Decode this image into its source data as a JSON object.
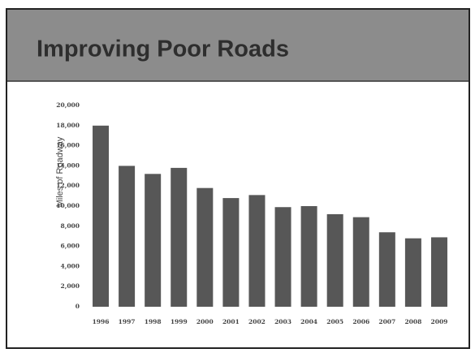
{
  "chart_data": {
    "type": "bar",
    "title": "Improving Poor Roads",
    "y_label": "Miles of Roadway",
    "categories": [
      "1996",
      "1997",
      "1998",
      "1999",
      "2000",
      "2001",
      "2002",
      "2003",
      "2004",
      "2005",
      "2006",
      "2007",
      "2008",
      "2009"
    ],
    "values": [
      18000,
      14000,
      13200,
      13800,
      11800,
      10800,
      11100,
      9900,
      10000,
      9200,
      8900,
      7400,
      6800,
      6900
    ],
    "color": "#575757",
    "ylim": [
      0,
      20000
    ],
    "yticks": [
      0,
      {
        "value": 2000,
        "label": "2,000"
      },
      {
        "value": 4000,
        "label": "4,000"
      },
      {
        "value": 6000,
        "label": "6,000"
      },
      {
        "value": 8000,
        "label": "8,000"
      },
      {
        "value": 10000,
        "label": "10,000"
      },
      {
        "value": 12000,
        "label": "12,000"
      },
      {
        "value": 14000,
        "label": "14,000"
      },
      {
        "value": 16000,
        "label": "16,000"
      },
      {
        "value": 18000,
        "label": "18,000"
      },
      {
        "value": 20000,
        "label": "20,000"
      }
    ],
    "grid": false
  }
}
